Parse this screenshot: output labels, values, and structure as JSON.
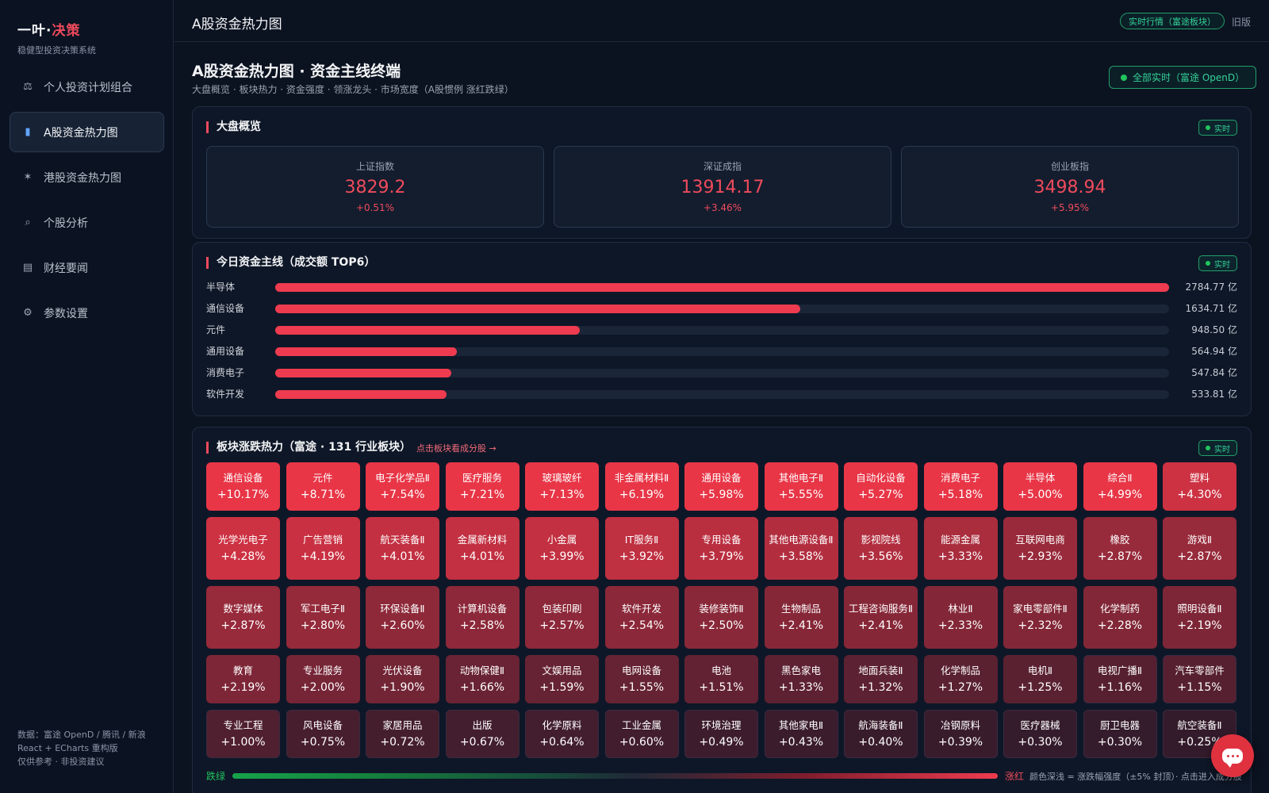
{
  "brand": {
    "title_main": "一叶·",
    "title_accent": "决策",
    "subtitle": "稳健型投资决策系统"
  },
  "nav": [
    {
      "label": "个人投资计划组合",
      "icon": "⚖",
      "icon_name": "scale-icon",
      "active": false
    },
    {
      "label": "A股资金热力图",
      "icon": "▮",
      "icon_name": "bar-chart-icon",
      "active": true
    },
    {
      "label": "港股资金热力图",
      "icon": "✶",
      "icon_name": "hk-flag-icon",
      "active": false
    },
    {
      "label": "个股分析",
      "icon": "⌕",
      "icon_name": "magnifier-icon",
      "active": false
    },
    {
      "label": "财经要闻",
      "icon": "▤",
      "icon_name": "newspaper-icon",
      "active": false
    },
    {
      "label": "参数设置",
      "icon": "⚙",
      "icon_name": "gear-icon",
      "active": false
    }
  ],
  "sidebar_footer": [
    "数据：富途 OpenD / 腾讯 / 新浪",
    "React + ECharts 重构版",
    "仅供参考 · 非投资建议"
  ],
  "topbar": {
    "title": "A股资金热力图",
    "realtime_pill": "实时行情（富途板块）",
    "old_version": "旧版"
  },
  "page": {
    "title": "A股资金热力图 · 资金主线终端",
    "subtitle": "大盘概览 · 板块热力 · 资金强度 · 领涨龙头 · 市场宽度（A股惯例 涨红跌绿）",
    "all_realtime": "全部实时（富途 OpenD）"
  },
  "realtime_badge": "实时",
  "overview": {
    "title": "大盘概览",
    "indices": [
      {
        "name": "上证指数",
        "value": "3829.2",
        "change": "+0.51%"
      },
      {
        "name": "深证成指",
        "value": "13914.17",
        "change": "+3.46%"
      },
      {
        "name": "创业板指",
        "value": "3498.94",
        "change": "+5.95%"
      }
    ]
  },
  "flow": {
    "title": "今日资金主线（成交额 TOP6）",
    "unit": "亿",
    "items": [
      {
        "name": "半导体",
        "value": 2784.77,
        "label": "2784.77 亿"
      },
      {
        "name": "通信设备",
        "value": 1634.71,
        "label": "1634.71 亿"
      },
      {
        "name": "元件",
        "value": 948.5,
        "label": "948.50 亿"
      },
      {
        "name": "通用设备",
        "value": 564.94,
        "label": "564.94 亿"
      },
      {
        "name": "消费电子",
        "value": 547.84,
        "label": "547.84 亿"
      },
      {
        "name": "软件开发",
        "value": 533.81,
        "label": "533.81 亿"
      }
    ]
  },
  "heatmap": {
    "title": "板块涨跌热力（富途 · 131 行业板块）",
    "hint": "点击板块看成分股 →",
    "rows": [
      [
        [
          "通信设备",
          "+10.17%"
        ],
        [
          "元件",
          "+8.71%"
        ],
        [
          "电子化学品Ⅱ",
          "+7.54%"
        ],
        [
          "医疗服务",
          "+7.21%"
        ],
        [
          "玻璃玻纤",
          "+7.13%"
        ],
        [
          "非金属材料Ⅱ",
          "+6.19%"
        ],
        [
          "通用设备",
          "+5.98%"
        ],
        [
          "其他电子Ⅱ",
          "+5.55%"
        ],
        [
          "自动化设备",
          "+5.27%"
        ],
        [
          "消费电子",
          "+5.18%"
        ],
        [
          "半导体",
          "+5.00%"
        ],
        [
          "综合Ⅱ",
          "+4.99%"
        ],
        [
          "塑料",
          "+4.30%"
        ]
      ],
      [
        [
          "光学光电子",
          "+4.28%"
        ],
        [
          "广告营销",
          "+4.19%"
        ],
        [
          "航天装备Ⅱ",
          "+4.01%"
        ],
        [
          "金属新材料",
          "+4.01%"
        ],
        [
          "小金属",
          "+3.99%"
        ],
        [
          "IT服务Ⅱ",
          "+3.92%"
        ],
        [
          "专用设备",
          "+3.79%"
        ],
        [
          "其他电源设备Ⅱ",
          "+3.58%"
        ],
        [
          "影视院线",
          "+3.56%"
        ],
        [
          "能源金属",
          "+3.33%"
        ],
        [
          "互联网电商",
          "+2.93%"
        ],
        [
          "橡胶",
          "+2.87%"
        ],
        [
          "游戏Ⅱ",
          "+2.87%"
        ]
      ],
      [
        [
          "数字媒体",
          "+2.87%"
        ],
        [
          "军工电子Ⅱ",
          "+2.80%"
        ],
        [
          "环保设备Ⅱ",
          "+2.60%"
        ],
        [
          "计算机设备",
          "+2.58%"
        ],
        [
          "包装印刷",
          "+2.57%"
        ],
        [
          "软件开发",
          "+2.54%"
        ],
        [
          "装修装饰Ⅱ",
          "+2.50%"
        ],
        [
          "生物制品",
          "+2.41%"
        ],
        [
          "工程咨询服务Ⅱ",
          "+2.41%"
        ],
        [
          "林业Ⅱ",
          "+2.33%"
        ],
        [
          "家电零部件Ⅱ",
          "+2.32%"
        ],
        [
          "化学制药",
          "+2.28%"
        ],
        [
          "照明设备Ⅱ",
          "+2.19%"
        ]
      ],
      [
        [
          "教育",
          "+2.19%"
        ],
        [
          "专业服务",
          "+2.00%"
        ],
        [
          "光伏设备",
          "+1.90%"
        ],
        [
          "动物保健Ⅱ",
          "+1.66%"
        ],
        [
          "文娱用品",
          "+1.59%"
        ],
        [
          "电网设备",
          "+1.55%"
        ],
        [
          "电池",
          "+1.51%"
        ],
        [
          "黑色家电",
          "+1.33%"
        ],
        [
          "地面兵装Ⅱ",
          "+1.32%"
        ],
        [
          "化学制品",
          "+1.27%"
        ],
        [
          "电机Ⅱ",
          "+1.25%"
        ],
        [
          "电视广播Ⅱ",
          "+1.16%"
        ],
        [
          "汽车零部件",
          "+1.15%"
        ]
      ],
      [
        [
          "专业工程",
          "+1.00%"
        ],
        [
          "风电设备",
          "+0.75%"
        ],
        [
          "家居用品",
          "+0.72%"
        ],
        [
          "出版",
          "+0.67%"
        ],
        [
          "化学原料",
          "+0.64%"
        ],
        [
          "工业金属",
          "+0.60%"
        ],
        [
          "环境治理",
          "+0.49%"
        ],
        [
          "其他家电Ⅱ",
          "+0.43%"
        ],
        [
          "航海装备Ⅱ",
          "+0.40%"
        ],
        [
          "冶钢原料",
          "+0.39%"
        ],
        [
          "医疗器械",
          "+0.30%"
        ],
        [
          "厨卫电器",
          "+0.30%"
        ],
        [
          "航空装备Ⅱ",
          "+0.25%"
        ]
      ]
    ],
    "legend": {
      "left": "跌绿",
      "right": "涨红",
      "note": "颜色深浅 = 涨跌幅强度（±5% 封顶）· 点击进入成分股"
    }
  },
  "colors": {
    "accent": "#ef4b5c",
    "up": "#ef3b4f",
    "down": "#16a34a",
    "live": "#22c55e"
  }
}
